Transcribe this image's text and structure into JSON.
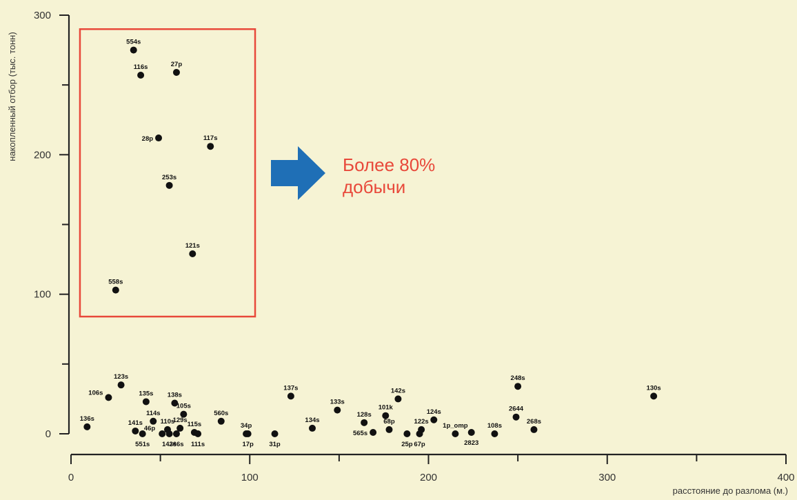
{
  "chart_data": {
    "type": "scatter",
    "title": "",
    "xlabel": "расстояние до разлома (м.)",
    "ylabel": "накопленный отбор (тыс. тонн)",
    "xlim": [
      0,
      400
    ],
    "ylim": [
      0,
      300
    ],
    "xticks": [
      0,
      100,
      200,
      300,
      400
    ],
    "yticks": [
      0,
      100,
      200,
      300
    ],
    "grid": false,
    "legend": "none",
    "marker_color": "#111111",
    "annotation": {
      "lines": [
        "Более 80%",
        "добычи"
      ],
      "box_color": "#e8483a",
      "arrow_color": "#1f6fb6",
      "box_x": [
        5,
        103
      ],
      "box_y": [
        84,
        290
      ]
    },
    "points": [
      {
        "label": "554s",
        "x": 35,
        "y": 275
      },
      {
        "label": "116s",
        "x": 39,
        "y": 257
      },
      {
        "label": "27p",
        "x": 59,
        "y": 259
      },
      {
        "label": "28p",
        "x": 49,
        "y": 212
      },
      {
        "label": "117s",
        "x": 78,
        "y": 206
      },
      {
        "label": "253s",
        "x": 55,
        "y": 178
      },
      {
        "label": "121s",
        "x": 68,
        "y": 129
      },
      {
        "label": "558s",
        "x": 25,
        "y": 103
      },
      {
        "label": "136s",
        "x": 9,
        "y": 5
      },
      {
        "label": "106s",
        "x": 21,
        "y": 26
      },
      {
        "label": "123s",
        "x": 28,
        "y": 35
      },
      {
        "label": "141s",
        "x": 36,
        "y": 2
      },
      {
        "label": "551s",
        "x": 40,
        "y": 0
      },
      {
        "label": "135s",
        "x": 42,
        "y": 23
      },
      {
        "label": "114s",
        "x": 46,
        "y": 9
      },
      {
        "label": "46p",
        "x": 51,
        "y": 0
      },
      {
        "label": "110s",
        "x": 54,
        "y": 3
      },
      {
        "label": "143s",
        "x": 55,
        "y": 0
      },
      {
        "label": "138s",
        "x": 58,
        "y": 22
      },
      {
        "label": "266s",
        "x": 59,
        "y": 0
      },
      {
        "label": "129s",
        "x": 61,
        "y": 4
      },
      {
        "label": "105s",
        "x": 63,
        "y": 14
      },
      {
        "label": "115s",
        "x": 69,
        "y": 1
      },
      {
        "label": "111s",
        "x": 71,
        "y": 0
      },
      {
        "label": "560s",
        "x": 84,
        "y": 9
      },
      {
        "label": "34p",
        "x": 98,
        "y": 0
      },
      {
        "label": "17p",
        "x": 99,
        "y": 0
      },
      {
        "label": "31p",
        "x": 114,
        "y": 0
      },
      {
        "label": "137s",
        "x": 123,
        "y": 27
      },
      {
        "label": "134s",
        "x": 135,
        "y": 4
      },
      {
        "label": "133s",
        "x": 149,
        "y": 17
      },
      {
        "label": "128s",
        "x": 164,
        "y": 8
      },
      {
        "label": "565s",
        "x": 169,
        "y": 1
      },
      {
        "label": "101k",
        "x": 176,
        "y": 13
      },
      {
        "label": "68p",
        "x": 178,
        "y": 3
      },
      {
        "label": "142s",
        "x": 183,
        "y": 25
      },
      {
        "label": "25p",
        "x": 188,
        "y": 0
      },
      {
        "label": "122s",
        "x": 196,
        "y": 3
      },
      {
        "label": "67p",
        "x": 195,
        "y": 0
      },
      {
        "label": "124s",
        "x": 203,
        "y": 10
      },
      {
        "label": "1p_omp",
        "x": 215,
        "y": 0
      },
      {
        "label": "2823",
        "x": 224,
        "y": 1
      },
      {
        "label": "108s",
        "x": 237,
        "y": 0
      },
      {
        "label": "2644",
        "x": 249,
        "y": 12
      },
      {
        "label": "248s",
        "x": 250,
        "y": 34
      },
      {
        "label": "268s",
        "x": 259,
        "y": 3
      },
      {
        "label": "130s",
        "x": 326,
        "y": 27
      }
    ]
  }
}
